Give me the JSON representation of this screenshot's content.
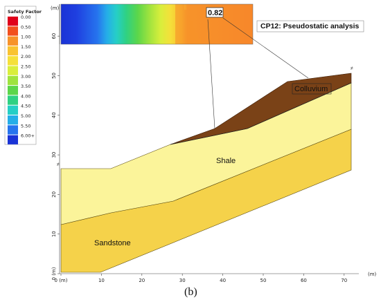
{
  "legend": {
    "title": "Safety Factor",
    "entries": [
      {
        "label": "0.00",
        "color": "#e0001b"
      },
      {
        "label": "0.50",
        "color": "#f2501e"
      },
      {
        "label": "1.00",
        "color": "#f7932a"
      },
      {
        "label": "1.50",
        "color": "#f9c331"
      },
      {
        "label": "2.00",
        "color": "#f5e03a"
      },
      {
        "label": "2.50",
        "color": "#d9ee3c"
      },
      {
        "label": "3.00",
        "color": "#9fe33e"
      },
      {
        "label": "3.50",
        "color": "#5cd64a"
      },
      {
        "label": "4.00",
        "color": "#2fd183"
      },
      {
        "label": "4.50",
        "color": "#26cfc6"
      },
      {
        "label": "5.00",
        "color": "#25aee8"
      },
      {
        "label": "5.50",
        "color": "#2674ee"
      },
      {
        "label": "6.00+",
        "color": "#1a33d6"
      }
    ]
  },
  "analysis_title": "CP12: Pseudostatic analysis",
  "safety_factor_value": "0.82",
  "axes": {
    "x_unit": "(m)",
    "y_unit": "(m)",
    "x_ticks": [
      "0 (m)",
      "10",
      "20",
      "30",
      "40",
      "50",
      "60",
      "70"
    ],
    "y_ticks": [
      "0 (m)",
      "10",
      "20",
      "30",
      "40",
      "50",
      "60"
    ]
  },
  "layers": {
    "colluvium": {
      "label": "Colluvium",
      "color": "#7a4217"
    },
    "shale": {
      "label": "Shale",
      "color": "#fbf49a"
    },
    "sandstone": {
      "label": "Sandstone",
      "color": "#f5d24a"
    }
  },
  "caption": "(b)"
}
